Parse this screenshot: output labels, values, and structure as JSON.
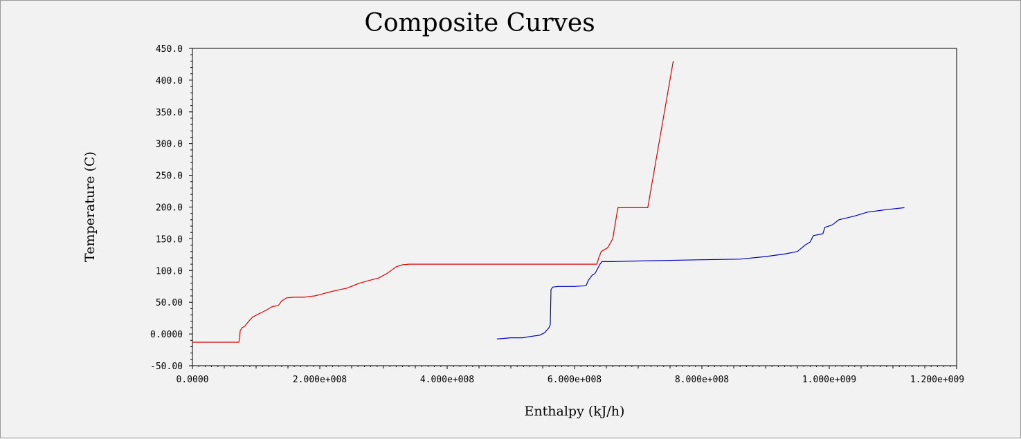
{
  "chart_data": {
    "type": "line",
    "title": "Composite Curves",
    "xlabel": "Enthalpy (kJ/h)",
    "ylabel": "Temperature (C)",
    "xlim": [
      0,
      1200000000
    ],
    "ylim": [
      -50,
      450
    ],
    "grid": false,
    "x_ticks": [
      {
        "value": 0,
        "label": "0.0000"
      },
      {
        "value": 200000000,
        "label": "2.000e+008"
      },
      {
        "value": 400000000,
        "label": "4.000e+008"
      },
      {
        "value": 600000000,
        "label": "6.000e+008"
      },
      {
        "value": 800000000,
        "label": "8.000e+008"
      },
      {
        "value": 1000000000,
        "label": "1.000e+009"
      },
      {
        "value": 1200000000,
        "label": "1.200e+009"
      }
    ],
    "y_ticks": [
      {
        "value": -50,
        "label": "-50.00"
      },
      {
        "value": 0,
        "label": "0.0000"
      },
      {
        "value": 50,
        "label": "50.00"
      },
      {
        "value": 100,
        "label": "100.0"
      },
      {
        "value": 150,
        "label": "150.0"
      },
      {
        "value": 200,
        "label": "200.0"
      },
      {
        "value": 250,
        "label": "250.0"
      },
      {
        "value": 300,
        "label": "300.0"
      },
      {
        "value": 350,
        "label": "350.0"
      },
      {
        "value": 400,
        "label": "400.0"
      },
      {
        "value": 450,
        "label": "450.0"
      }
    ],
    "series": [
      {
        "color": "#e00000",
        "points": [
          [
            0,
            -13
          ],
          [
            73000000,
            -13
          ],
          [
            75000000,
            5
          ],
          [
            78000000,
            10
          ],
          [
            82000000,
            12
          ],
          [
            90000000,
            22
          ],
          [
            95000000,
            27
          ],
          [
            105000000,
            32
          ],
          [
            115000000,
            37
          ],
          [
            125000000,
            43
          ],
          [
            135000000,
            45
          ],
          [
            140000000,
            52
          ],
          [
            148000000,
            57
          ],
          [
            160000000,
            58
          ],
          [
            175000000,
            58
          ],
          [
            192000000,
            60
          ],
          [
            200000000,
            62
          ],
          [
            215000000,
            66
          ],
          [
            232000000,
            70
          ],
          [
            242000000,
            72
          ],
          [
            262000000,
            80
          ],
          [
            280000000,
            85
          ],
          [
            292000000,
            88
          ],
          [
            305000000,
            95
          ],
          [
            312000000,
            100
          ],
          [
            320000000,
            106
          ],
          [
            330000000,
            109
          ],
          [
            340000000,
            110
          ],
          [
            635000000,
            110
          ],
          [
            638000000,
            120
          ],
          [
            642000000,
            130
          ],
          [
            652000000,
            136
          ],
          [
            660000000,
            150
          ],
          [
            668000000,
            199
          ],
          [
            715000000,
            199
          ],
          [
            755000000,
            430
          ]
        ]
      },
      {
        "color": "#0000c0",
        "points": [
          [
            478000000,
            -8
          ],
          [
            500000000,
            -6
          ],
          [
            518000000,
            -6
          ],
          [
            530000000,
            -4
          ],
          [
            545000000,
            -2
          ],
          [
            553000000,
            2
          ],
          [
            560000000,
            10
          ],
          [
            562000000,
            15
          ],
          [
            563000000,
            70
          ],
          [
            566000000,
            74
          ],
          [
            575000000,
            75
          ],
          [
            600000000,
            75
          ],
          [
            618000000,
            76
          ],
          [
            622000000,
            85
          ],
          [
            628000000,
            93
          ],
          [
            632000000,
            95
          ],
          [
            640000000,
            110
          ],
          [
            643000000,
            114
          ],
          [
            660000000,
            114
          ],
          [
            700000000,
            115
          ],
          [
            750000000,
            116
          ],
          [
            800000000,
            117
          ],
          [
            860000000,
            118
          ],
          [
            900000000,
            122
          ],
          [
            930000000,
            126
          ],
          [
            950000000,
            130
          ],
          [
            962000000,
            140
          ],
          [
            970000000,
            145
          ],
          [
            975000000,
            155
          ],
          [
            990000000,
            158
          ],
          [
            993000000,
            168
          ],
          [
            1005000000,
            172
          ],
          [
            1015000000,
            180
          ],
          [
            1040000000,
            186
          ],
          [
            1060000000,
            192
          ],
          [
            1090000000,
            196
          ],
          [
            1118000000,
            199
          ]
        ]
      }
    ]
  }
}
